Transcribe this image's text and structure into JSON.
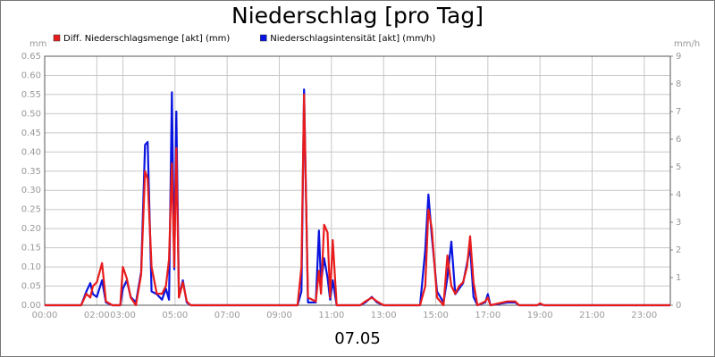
{
  "chart_data": {
    "type": "line",
    "title": "Niederschlag [pro Tag]",
    "xlabel": "07.05",
    "ylabel": "mm",
    "y2label": "mm/h",
    "grid": true,
    "legend": "top-left",
    "xlim": [
      0,
      24
    ],
    "xticks": [
      {
        "value": 0,
        "label": "00:00"
      },
      {
        "value": 2,
        "label": "02:00"
      },
      {
        "value": 3,
        "label": "03:00"
      },
      {
        "value": 5,
        "label": "05:00"
      },
      {
        "value": 7,
        "label": "07:00"
      },
      {
        "value": 9,
        "label": "09:00"
      },
      {
        "value": 11,
        "label": "11:00"
      },
      {
        "value": 13,
        "label": "13:00"
      },
      {
        "value": 15,
        "label": "15:00"
      },
      {
        "value": 17,
        "label": "17:00"
      },
      {
        "value": 19,
        "label": "19:00"
      },
      {
        "value": 21,
        "label": "21:00"
      },
      {
        "value": 23,
        "label": "23:00"
      }
    ],
    "ylim": [
      0,
      0.65
    ],
    "yticks": [
      {
        "value": 0,
        "label": "0.00"
      },
      {
        "value": 0.05,
        "label": "0.05"
      },
      {
        "value": 0.1,
        "label": "0.10"
      },
      {
        "value": 0.15,
        "label": "0.15"
      },
      {
        "value": 0.2,
        "label": "0.20"
      },
      {
        "value": 0.25,
        "label": "0.25"
      },
      {
        "value": 0.3,
        "label": "0.30"
      },
      {
        "value": 0.35,
        "label": "0.35"
      },
      {
        "value": 0.4,
        "label": "0.40"
      },
      {
        "value": 0.45,
        "label": "0.45"
      },
      {
        "value": 0.5,
        "label": "0.50"
      },
      {
        "value": 0.55,
        "label": "0.55"
      },
      {
        "value": 0.6,
        "label": "0.60"
      },
      {
        "value": 0.65,
        "label": "0.65"
      }
    ],
    "y2lim": [
      0,
      9
    ],
    "y2ticks": [
      0,
      1,
      2,
      3,
      4,
      5,
      6,
      7,
      8,
      9
    ],
    "x": [
      0,
      1.4,
      1.6,
      1.75,
      1.85,
      2.0,
      2.2,
      2.35,
      2.6,
      2.9,
      3.0,
      3.15,
      3.3,
      3.5,
      3.7,
      3.85,
      3.95,
      4.1,
      4.3,
      4.5,
      4.65,
      4.77,
      4.88,
      4.97,
      5.05,
      5.15,
      5.3,
      5.45,
      5.6,
      9.7,
      9.85,
      9.95,
      10.1,
      10.4,
      10.52,
      10.6,
      10.72,
      10.85,
      10.95,
      11.05,
      11.2,
      12.1,
      12.3,
      12.55,
      12.75,
      13.0,
      14.4,
      14.6,
      14.72,
      14.85,
      15.05,
      15.3,
      15.45,
      15.6,
      15.75,
      15.9,
      16.05,
      16.2,
      16.32,
      16.45,
      16.6,
      16.9,
      17.0,
      17.1,
      17.75,
      18.05,
      18.2,
      18.9,
      19.0,
      19.15,
      24
    ],
    "series": [
      {
        "name": "Diff. Niederschlagsmenge [akt] (mm)",
        "color": "#e81c1c",
        "axis": "y",
        "values": [
          0,
          0,
          0.03,
          0.02,
          0.05,
          0.06,
          0.11,
          0.01,
          0,
          0,
          0.1,
          0.07,
          0.02,
          0,
          0.08,
          0.35,
          0.33,
          0.1,
          0.03,
          0.03,
          0.05,
          0.12,
          0.37,
          0.1,
          0.41,
          0.02,
          0.06,
          0.01,
          0,
          0,
          0.1,
          0.55,
          0.02,
          0.01,
          0.09,
          0.03,
          0.21,
          0.19,
          0.02,
          0.17,
          0,
          0,
          0.01,
          0.02,
          0.01,
          0,
          0,
          0.05,
          0.25,
          0.2,
          0.02,
          0,
          0.13,
          0.05,
          0.03,
          0.05,
          0.06,
          0.1,
          0.18,
          0.06,
          0,
          0.01,
          0.02,
          0,
          0.01,
          0.01,
          0,
          0,
          0.005,
          0,
          0
        ]
      },
      {
        "name": "Niederschlagsintensität [akt] (mm/h)",
        "color": "#0a14e0",
        "axis": "y2",
        "values": [
          0,
          0,
          0.5,
          0.8,
          0.4,
          0.3,
          0.9,
          0.1,
          0,
          0,
          0.6,
          0.9,
          0.3,
          0.1,
          1.2,
          5.8,
          5.9,
          0.5,
          0.4,
          0.2,
          0.6,
          0.2,
          7.7,
          1.3,
          7.0,
          0.3,
          0.9,
          0.1,
          0,
          0,
          0.5,
          7.8,
          0.1,
          0.1,
          2.7,
          0.8,
          1.7,
          1.0,
          0.2,
          0.9,
          0,
          0,
          0.1,
          0.3,
          0.1,
          0,
          0,
          2.0,
          4.0,
          2.5,
          0.5,
          0.1,
          1.0,
          2.3,
          0.4,
          0.6,
          0.8,
          1.5,
          2.1,
          0.3,
          0,
          0.1,
          0.4,
          0,
          0.1,
          0.1,
          0,
          0,
          0.05,
          0,
          0
        ]
      }
    ]
  }
}
